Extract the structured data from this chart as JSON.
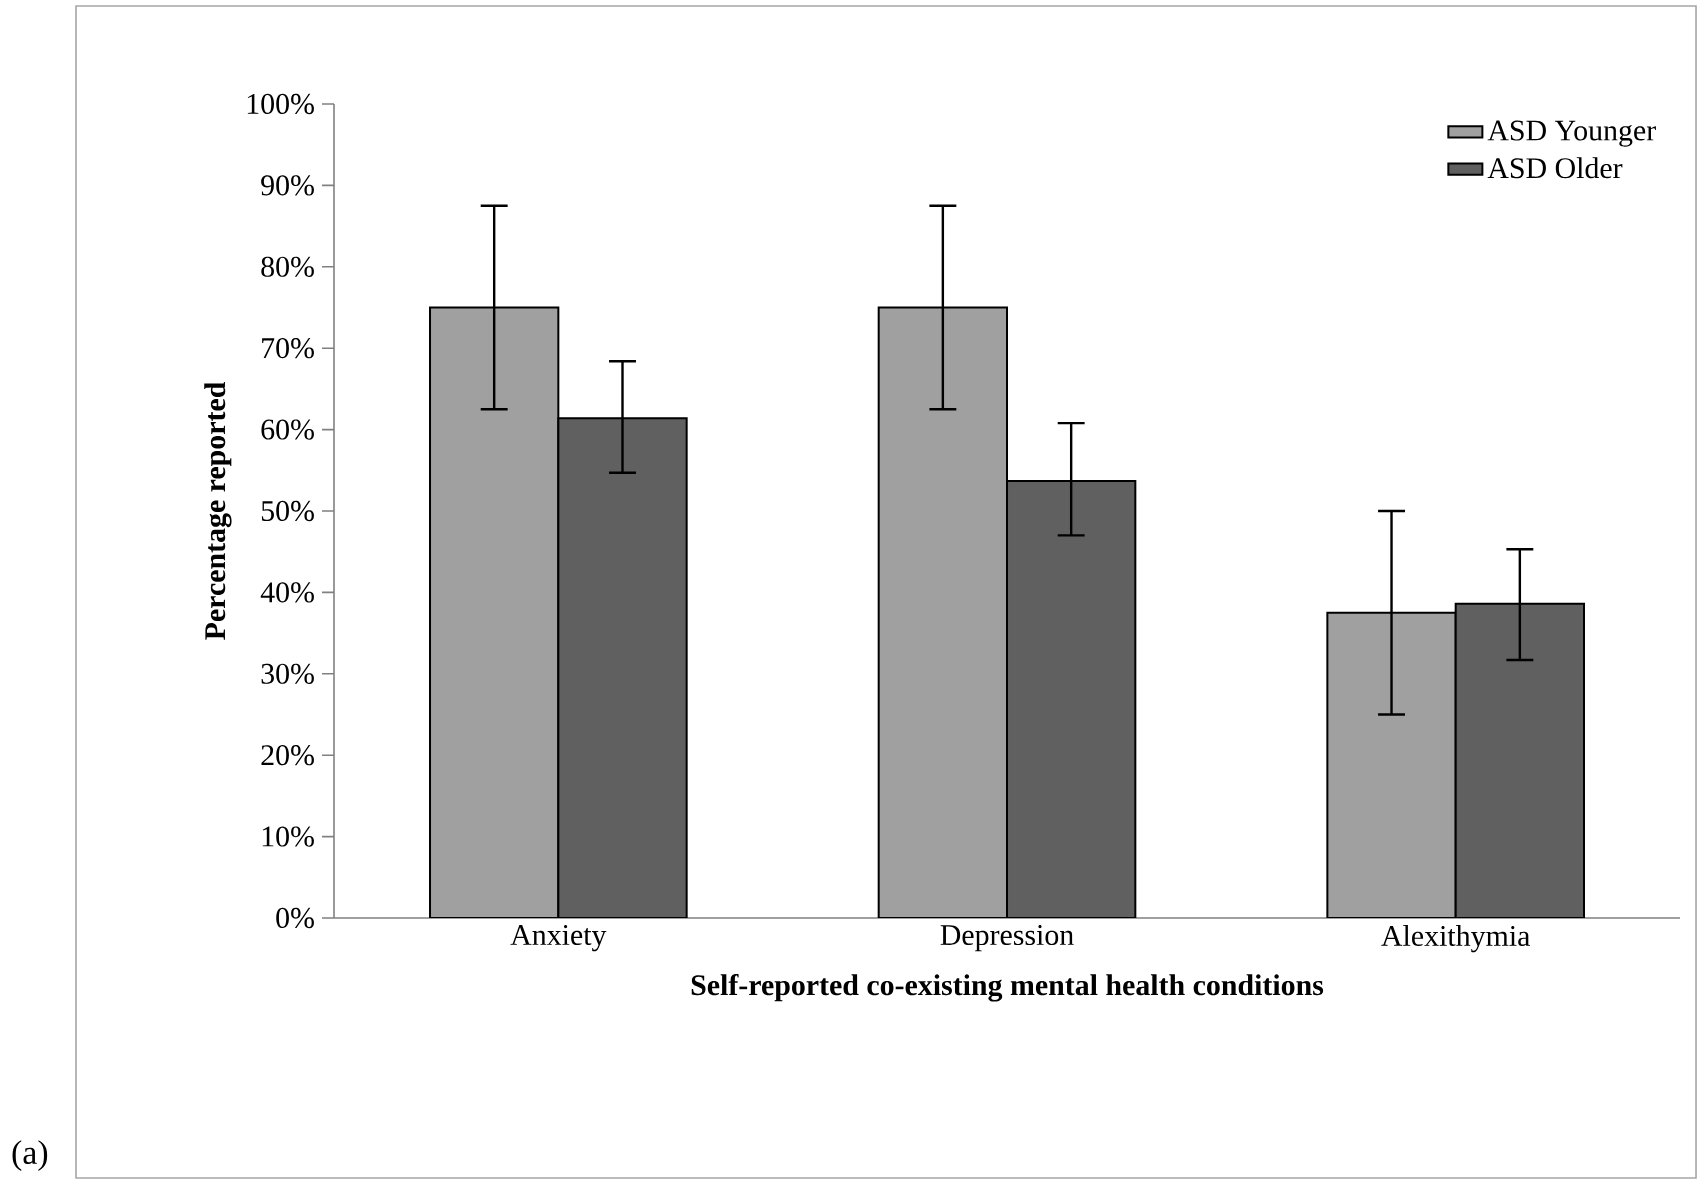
{
  "chart_data": {
    "type": "bar",
    "xlabel": "Self-reported co-existing mental health conditions",
    "ylabel": "Percentage reported",
    "categories": [
      "Anxiety",
      "Depression",
      "Alexithymia"
    ],
    "series": [
      {
        "name": "ASD Younger",
        "color": "#a0a0a0",
        "values": [
          75,
          75,
          37.5
        ],
        "errors": [
          [
            62.5,
            87.5
          ],
          [
            62.5,
            87.5
          ],
          [
            25,
            50
          ]
        ]
      },
      {
        "name": "ASD Older",
        "color": "#606060",
        "values": [
          61.4,
          53.7,
          38.6
        ],
        "errors": [
          [
            54.7,
            68.4
          ],
          [
            47.0,
            60.8
          ],
          [
            31.7,
            45.3
          ]
        ]
      }
    ],
    "ylim": [
      0,
      100
    ],
    "yticks": [
      {
        "value": 0,
        "label": "0%"
      },
      {
        "value": 10,
        "label": "10%"
      },
      {
        "value": 20,
        "label": "20%"
      },
      {
        "value": 30,
        "label": "30%"
      },
      {
        "value": 40,
        "label": "40%"
      },
      {
        "value": 50,
        "label": "50%"
      },
      {
        "value": 60,
        "label": "60%"
      },
      {
        "value": 70,
        "label": "70%"
      },
      {
        "value": 80,
        "label": "80%"
      },
      {
        "value": 90,
        "label": "90%"
      },
      {
        "value": 100,
        "label": "100%"
      }
    ],
    "grid": false,
    "legend": "top right",
    "annotations": [
      "(a)"
    ]
  }
}
